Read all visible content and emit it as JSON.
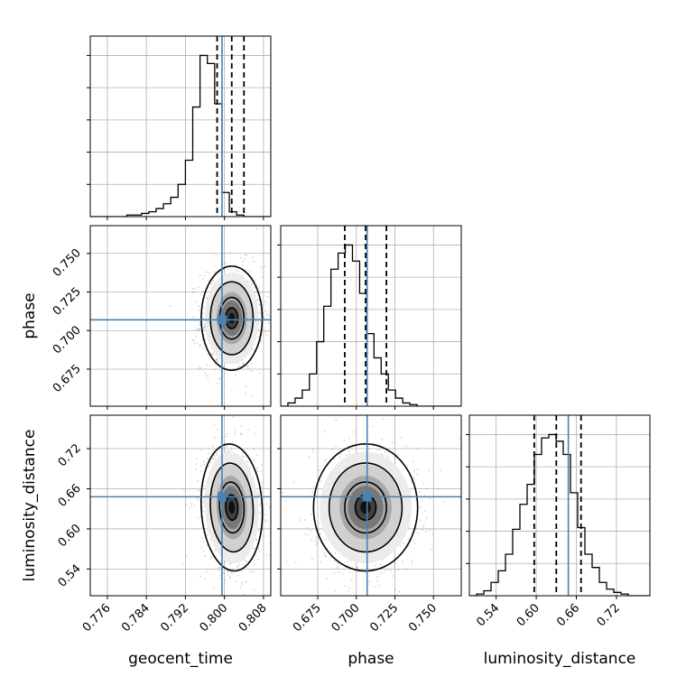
{
  "chart_data": {
    "type": "corner",
    "parameters": [
      "geocent_time",
      "phase",
      "luminosity_distance"
    ],
    "axis_labels": {
      "geocent_time": "geocent_time",
      "phase": "phase",
      "luminosity_distance": "luminosity_distance"
    },
    "ranges": {
      "geocent_time": [
        0.7725,
        0.8095
      ],
      "phase": [
        0.651,
        0.768
      ],
      "luminosity_distance": [
        0.5,
        0.77
      ]
    },
    "ticks": {
      "geocent_time": [
        0.776,
        0.784,
        0.792,
        0.8,
        0.808
      ],
      "phase": [
        0.675,
        0.7,
        0.725,
        0.75
      ],
      "luminosity_distance": [
        0.54,
        0.6,
        0.66,
        0.72
      ]
    },
    "tick_labels": {
      "geocent_time": [
        "0.776",
        "0.784",
        "0.792",
        "0.800",
        "0.808"
      ],
      "phase": [
        "0.675",
        "0.700",
        "0.725",
        "0.750"
      ],
      "luminosity_distance": [
        "0.54",
        "0.60",
        "0.66",
        "0.72"
      ]
    },
    "injection_values": {
      "geocent_time": 0.7995,
      "phase": 0.707,
      "luminosity_distance": 0.648
    },
    "quantiles": {
      "geocent_time": [
        0.7985,
        0.8015,
        0.804
      ],
      "phase": [
        0.6925,
        0.706,
        0.7195
      ],
      "luminosity_distance": [
        0.597,
        0.63,
        0.667
      ]
    },
    "histograms": {
      "geocent_time": {
        "bin_start": 0.7725,
        "bin_width": 0.0015,
        "counts": [
          0,
          0,
          0,
          0,
          0,
          1,
          1,
          2,
          3,
          5,
          8,
          12,
          20,
          35,
          68,
          100,
          95,
          70,
          15,
          3,
          1,
          0,
          0,
          0,
          0
        ]
      },
      "phase": {
        "bin_start": 0.651,
        "bin_width": 0.00465,
        "counts": [
          0,
          2,
          5,
          10,
          20,
          40,
          62,
          85,
          95,
          100,
          90,
          70,
          45,
          30,
          20,
          10,
          5,
          2,
          1,
          0,
          0,
          0,
          0,
          0,
          0
        ]
      },
      "luminosity_distance": {
        "bin_start": 0.5,
        "bin_width": 0.0108,
        "counts": [
          0,
          1,
          3,
          8,
          15,
          25,
          40,
          55,
          67,
          85,
          95,
          97,
          93,
          85,
          62,
          41,
          25,
          17,
          8,
          4,
          2,
          1,
          0,
          0,
          0
        ]
      }
    },
    "contours_2d": {
      "phase_vs_geocent_time": {
        "center": [
          0.8015,
          0.708
        ],
        "sigma": [
          0.0025,
          0.0135
        ],
        "rho": 0.0
      },
      "luminosity_distance_vs_geocent_time": {
        "center": [
          0.8015,
          0.632
        ],
        "sigma": [
          0.0025,
          0.038
        ],
        "rho": -0.1
      },
      "luminosity_distance_vs_phase": {
        "center": [
          0.706,
          0.632
        ],
        "sigma": [
          0.0135,
          0.038
        ],
        "rho": 0.0
      }
    },
    "colors": {
      "truth": "#4682b4",
      "hist": "#000000",
      "grid": "#b0b0b0",
      "scatter": "#808080"
    }
  }
}
